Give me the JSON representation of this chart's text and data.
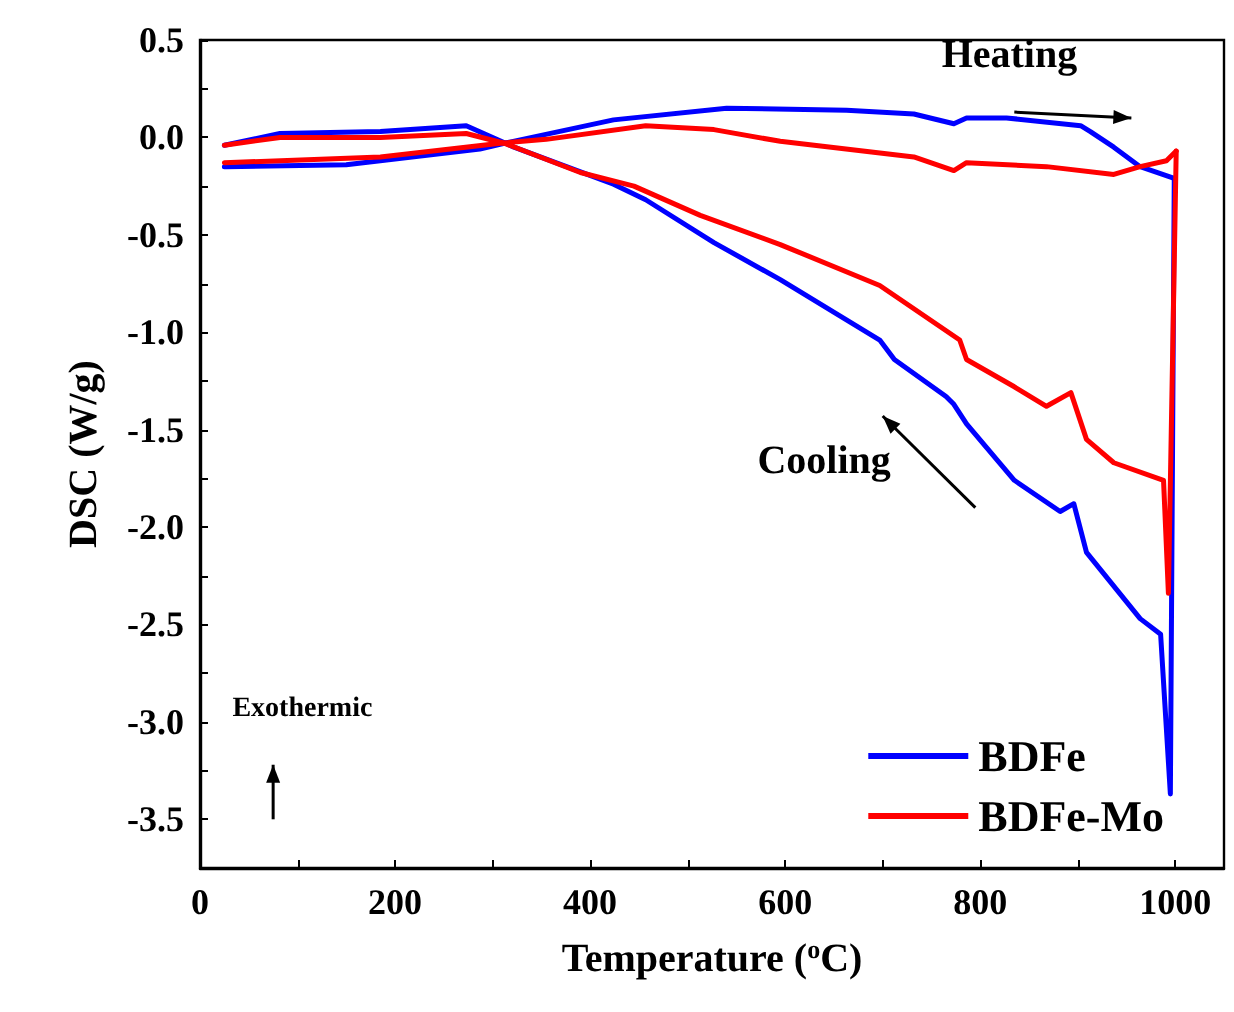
{
  "chart_data": {
    "type": "line",
    "xlabel": "Temperature ($^{o}$C)",
    "ylabel": "DSC (W/g)",
    "annotations": [
      "Heating",
      "Cooling",
      "Exothermic"
    ],
    "xlim": [
      0,
      1050
    ],
    "ylim": [
      -3.75,
      0.5
    ],
    "xticks": [
      0,
      {
        "value": 100,
        "label": null
      },
      200,
      {
        "value": 300,
        "label": null
      },
      400,
      {
        "value": 500,
        "label": null
      },
      600,
      {
        "value": 700,
        "label": null
      },
      800,
      {
        "value": 900,
        "label": null
      },
      1000
    ],
    "yticks": [
      {
        "value": -3.75,
        "label": null
      },
      -3.5,
      {
        "value": -3.25,
        "label": null
      },
      {
        "value": -3,
        "label": "-3.0"
      },
      {
        "value": -2.75,
        "label": null
      },
      -2.5,
      {
        "value": -2.25,
        "label": null
      },
      {
        "value": -2,
        "label": "-2.0"
      },
      {
        "value": -1.75,
        "label": null
      },
      -1.5,
      {
        "value": -1.25,
        "label": null
      },
      {
        "value": -1,
        "label": "-1.0"
      },
      {
        "value": -0.75,
        "label": null
      },
      -0.5,
      {
        "value": -0.25,
        "label": null
      },
      {
        "value": 0,
        "label": "0.0"
      },
      {
        "value": 0.25,
        "label": null
      },
      0.5
    ],
    "grid": false,
    "legend": "bottom right",
    "marker": "none",
    "line_style": "solid",
    "series": [
      {
        "name": "BDFe",
        "color": "#0000ff",
        "x": [
          25,
          27,
          150,
          287,
          312,
          424,
          540,
          663,
          732,
          773,
          786,
          827,
          903,
          913,
          937,
          964,
          999
        ],
        "values": [
          -0.15,
          -0.15,
          -0.14,
          -0.06,
          -0.03,
          0.09,
          0.15,
          0.14,
          0.12,
          0.07,
          0.1,
          0.1,
          0.06,
          0.03,
          -0.05,
          -0.15,
          -0.21
        ]
      },
      {
        "color": "#0000ff",
        "x": [
          999,
          995,
          985,
          964,
          909,
          896,
          882,
          835,
          786,
          773,
          765,
          712,
          697,
          595,
          527,
          457,
          424,
          322,
          273,
          185,
          82,
          25
        ],
        "values": [
          -0.21,
          -3.37,
          -2.55,
          -2.47,
          -2.13,
          -1.88,
          -1.92,
          -1.76,
          -1.47,
          -1.37,
          -1.33,
          -1.14,
          -1.04,
          -0.73,
          -0.54,
          -0.32,
          -0.24,
          -0.05,
          0.06,
          0.03,
          0.02,
          -0.04
        ]
      },
      {
        "name": "BDFe-Mo",
        "color": "#ff0000",
        "x": [
          25,
          185,
          308,
          355,
          457,
          527,
          595,
          732,
          773,
          786,
          868,
          937,
          964,
          991,
          1001
        ],
        "values": [
          -0.13,
          -0.1,
          -0.03,
          -0.01,
          0.06,
          0.04,
          -0.02,
          -0.1,
          -0.17,
          -0.13,
          -0.15,
          -0.19,
          -0.15,
          -0.12,
          -0.07
        ]
      },
      {
        "color": "#ff0000",
        "x": [
          1001,
          993,
          988,
          937,
          909,
          893,
          868,
          835,
          786,
          779,
          697,
          595,
          513,
          445,
          390,
          312,
          273,
          185,
          82,
          25
        ],
        "values": [
          -0.07,
          -2.34,
          -1.76,
          -1.67,
          -1.55,
          -1.31,
          -1.38,
          -1.28,
          -1.14,
          -1.04,
          -0.76,
          -0.55,
          -0.4,
          -0.25,
          -0.18,
          -0.03,
          0.02,
          0.0,
          0.0,
          -0.04
        ]
      }
    ]
  }
}
